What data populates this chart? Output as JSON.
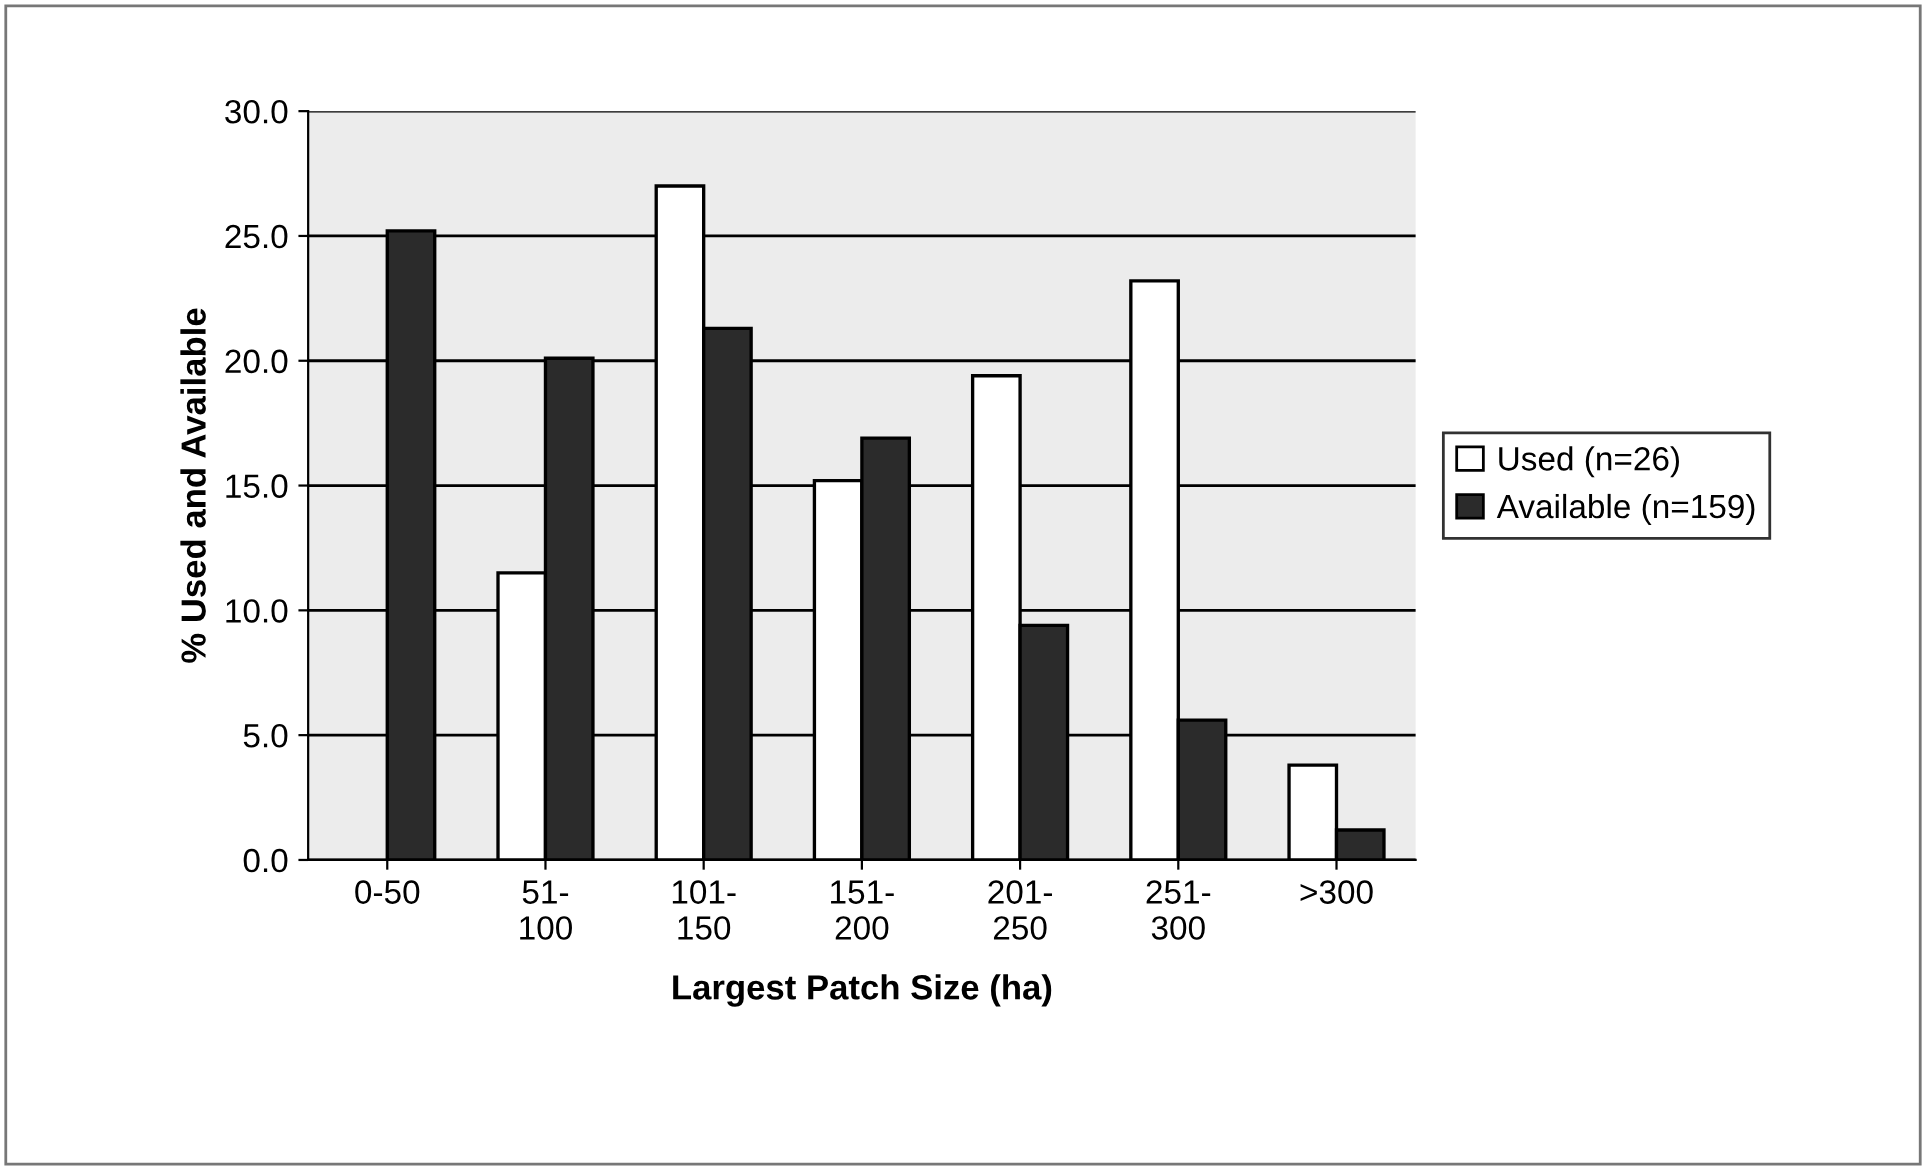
{
  "chart_data": {
    "type": "bar",
    "xlabel": "Largest Patch Size (ha)",
    "ylabel": "% Used and Available",
    "categories": [
      "0-50",
      "51-\n100",
      "101-\n150",
      "151-\n200",
      "201-\n250",
      "251-\n300",
      ">300"
    ],
    "series": [
      {
        "name": "Used (n=26)",
        "color": "#ffffff",
        "values": [
          null,
          11.5,
          27.0,
          15.2,
          19.4,
          23.2,
          3.8
        ]
      },
      {
        "name": "Available (n=159)",
        "color": "#2b2b2b",
        "values": [
          25.2,
          20.1,
          21.3,
          16.9,
          9.4,
          5.6,
          1.2
        ]
      }
    ],
    "ylim": [
      0,
      30
    ],
    "yticks": [
      {
        "value": 0,
        "label": "0.0"
      },
      {
        "value": 5,
        "label": "5.0"
      },
      {
        "value": 10,
        "label": "10.0"
      },
      {
        "value": 15,
        "label": "15.0"
      },
      {
        "value": 20,
        "label": "20.0"
      },
      {
        "value": 25,
        "label": "25.0"
      },
      {
        "value": 30,
        "label": "30.0"
      }
    ],
    "grid": "y",
    "legend": "right"
  }
}
